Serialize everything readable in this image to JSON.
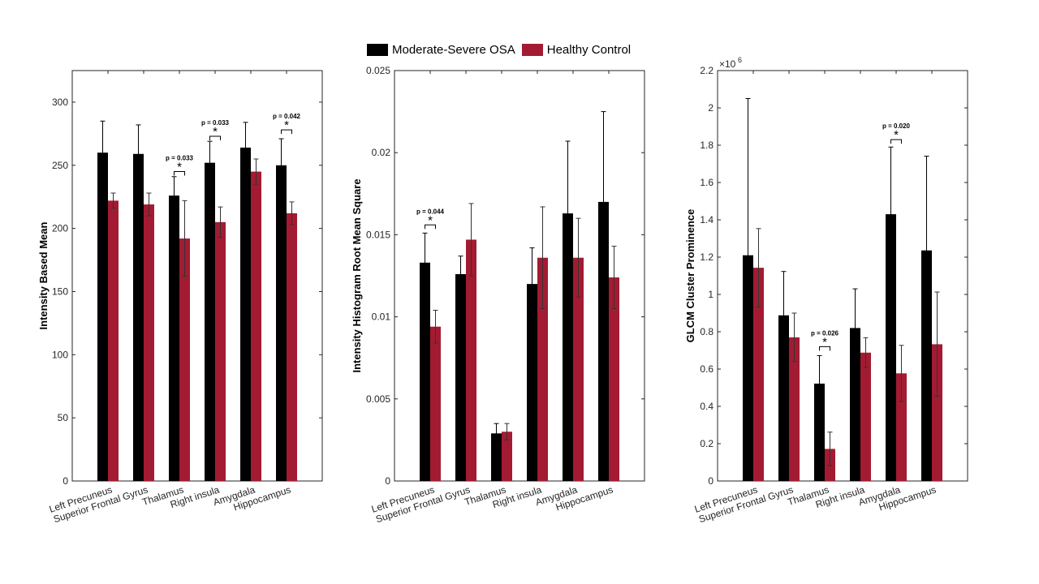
{
  "legend": {
    "a": "Moderate-Severe OSA",
    "b": "Healthy Control"
  },
  "colors": {
    "a": "#000000",
    "b": "#a31b32"
  },
  "chart_data": [
    {
      "type": "bar",
      "ylabel": "Intensity Based Mean",
      "ylim": [
        0,
        325
      ],
      "yticks": [
        0,
        50,
        100,
        150,
        200,
        250,
        300
      ],
      "ytick_labels": [
        "0",
        "50",
        "100",
        "150",
        "200",
        "250",
        "300"
      ],
      "exponent_label": "",
      "categories": [
        "Left Precuneus",
        "Superior Frontal Gyrus",
        "Thalamus",
        "Right insula",
        "Amygdala",
        "Hippocampus"
      ],
      "series": [
        {
          "name": "Moderate-Severe OSA",
          "values": [
            260,
            259,
            226,
            252,
            264,
            250
          ],
          "err": [
            25,
            23,
            15,
            17,
            20,
            21
          ]
        },
        {
          "name": "Healthy Control",
          "values": [
            222,
            219,
            192,
            205,
            245,
            212
          ],
          "err": [
            6,
            9,
            30,
            12,
            10,
            9
          ]
        }
      ],
      "annotations": [
        {
          "category": 2,
          "text": "p = 0.033",
          "bracket_y": 245
        },
        {
          "category": 3,
          "text": "p = 0.033",
          "bracket_y": 273
        },
        {
          "category": 5,
          "text": "p = 0.042",
          "bracket_y": 278
        }
      ]
    },
    {
      "type": "bar",
      "ylabel": "Intensity Histogram Root Mean Square",
      "ylim": [
        0,
        0.025
      ],
      "yticks": [
        0,
        0.005,
        0.01,
        0.015,
        0.02,
        0.025
      ],
      "ytick_labels": [
        "0",
        "0.005",
        "0.01",
        "0.015",
        "0.02",
        "0.025"
      ],
      "exponent_label": "",
      "categories": [
        "Left Precuneus",
        "Superior Frontal Gyrus",
        "Thalamus",
        "Right insula",
        "Amygdala",
        "Hippocampus"
      ],
      "series": [
        {
          "name": "Moderate-Severe OSA",
          "values": [
            0.0133,
            0.0126,
            0.0029,
            0.012,
            0.0163,
            0.017
          ],
          "err": [
            0.0018,
            0.0011,
            0.0006,
            0.0022,
            0.0044,
            0.0055
          ]
        },
        {
          "name": "Healthy Control",
          "values": [
            0.0094,
            0.0147,
            0.003,
            0.0136,
            0.0136,
            0.0124
          ],
          "err": [
            0.001,
            0.0022,
            0.0005,
            0.0031,
            0.0024,
            0.0019
          ]
        }
      ],
      "annotations": [
        {
          "category": 0,
          "text": "p = 0.044",
          "bracket_y": 0.0156
        }
      ]
    },
    {
      "type": "bar",
      "ylabel": "GLCM Cluster Prominence",
      "ylim": [
        0,
        2200000
      ],
      "yticks": [
        0,
        200000,
        400000,
        600000,
        800000,
        1000000,
        1200000,
        1400000,
        1600000,
        1800000,
        2000000,
        2200000
      ],
      "ytick_labels": [
        "0",
        "0.2",
        "0.4",
        "0.6",
        "0.8",
        "1",
        "1.2",
        "1.4",
        "1.6",
        "1.8",
        "2",
        "2.2"
      ],
      "exponent_label": "×10",
      "exponent_power": "6",
      "categories": [
        "Left Precuneus",
        "Superior Frontal Gyrus",
        "Thalamus",
        "Right insula",
        "Amygdala",
        "Hippocampus"
      ],
      "series": [
        {
          "name": "Moderate-Severe OSA",
          "values": [
            1210000,
            888000,
            522000,
            820000,
            1430000,
            1236000
          ],
          "err": [
            840000,
            235000,
            150000,
            210000,
            360000,
            505000
          ]
        },
        {
          "name": "Healthy Control",
          "values": [
            1143000,
            770000,
            172000,
            688000,
            577000,
            733000
          ],
          "err": [
            210000,
            130000,
            90000,
            80000,
            150000,
            280000
          ]
        }
      ],
      "annotations": [
        {
          "category": 2,
          "text": "p = 0.026",
          "bracket_y": 720000
        },
        {
          "category": 4,
          "text": "p = 0.020",
          "bracket_y": 1830000
        }
      ]
    }
  ]
}
